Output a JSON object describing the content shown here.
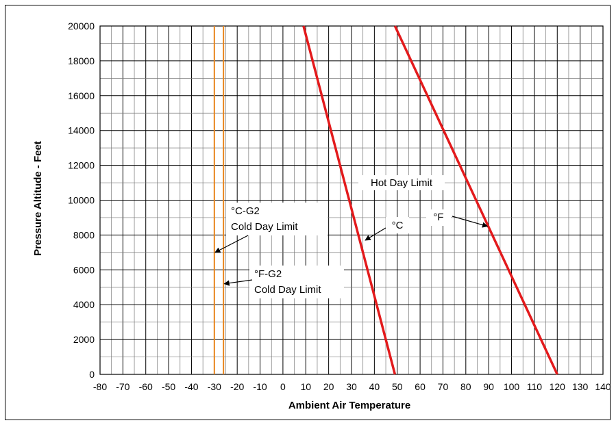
{
  "chart_data": {
    "type": "line",
    "title": "",
    "xlabel": "Ambient Air Temperature",
    "ylabel": "Pressure Altitude - Feet",
    "xlim": [
      -80,
      140
    ],
    "ylim": [
      0,
      20000
    ],
    "x_ticks": [
      -80,
      -70,
      -60,
      -50,
      -40,
      -30,
      -20,
      -10,
      0,
      10,
      20,
      30,
      40,
      50,
      60,
      70,
      80,
      90,
      100,
      110,
      120,
      130,
      140
    ],
    "y_ticks": [
      0,
      2000,
      4000,
      6000,
      8000,
      10000,
      12000,
      14000,
      16000,
      18000,
      20000
    ],
    "grid": true,
    "series": [
      {
        "name": "°C",
        "color": "#e31a1c",
        "x": [
          49,
          9
        ],
        "y": [
          0,
          20000
        ]
      },
      {
        "name": "°F",
        "color": "#e31a1c",
        "x": [
          120,
          49
        ],
        "y": [
          0,
          20000
        ]
      },
      {
        "name": "°C-G2",
        "color": "#e8851c",
        "x": [
          -30,
          -30
        ],
        "y": [
          0,
          20000
        ]
      },
      {
        "name": "°F-G2",
        "color": "#e8851c",
        "x": [
          -26,
          -26
        ],
        "y": [
          0,
          20000
        ]
      }
    ],
    "annotations": {
      "hot_day": "Hot Day Limit",
      "c_label": "°C",
      "f_label": "°F",
      "cg2_line1": "°C-G2",
      "cg2_line2": "Cold Day Limit",
      "fg2_line1": "°F-G2",
      "fg2_line2": "Cold Day Limit"
    }
  }
}
